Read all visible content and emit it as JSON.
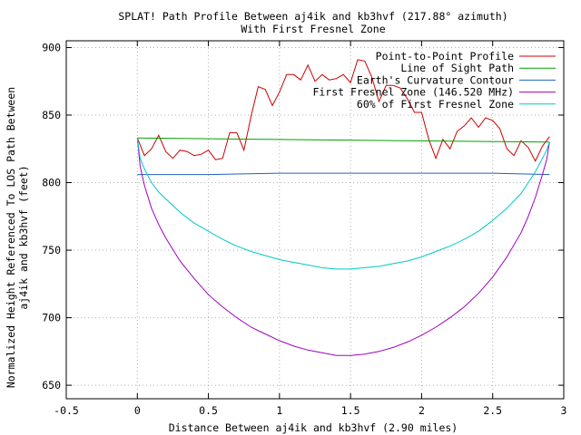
{
  "chart_data": {
    "type": "line",
    "title": "SPLAT! Path Profile Between aj4ik and kb3hvf (217.88° azimuth)",
    "subtitle": "With First Fresnel Zone",
    "xlabel": "Distance Between aj4ik and kb3hvf (2.90 miles)",
    "ylabel_line1": "Normalized Height Referenced To LOS Path Between",
    "ylabel_line2": "aj4ik and kb3hvf (feet)",
    "xlim": [
      -0.5,
      3
    ],
    "ylim": [
      640,
      905
    ],
    "xticks": [
      {
        "value": -0.5,
        "label": "-0.5"
      },
      {
        "value": 0,
        "label": "0"
      },
      {
        "value": 0.5,
        "label": "0.5"
      },
      {
        "value": 1,
        "label": "1"
      },
      {
        "value": 1.5,
        "label": "1.5"
      },
      {
        "value": 2,
        "label": "2"
      },
      {
        "value": 2.5,
        "label": "2.5"
      },
      {
        "value": 3,
        "label": "3"
      }
    ],
    "yticks": [
      {
        "value": 650,
        "label": "650"
      },
      {
        "value": 700,
        "label": "700"
      },
      {
        "value": 750,
        "label": "750"
      },
      {
        "value": 800,
        "label": "800"
      },
      {
        "value": 850,
        "label": "850"
      },
      {
        "value": 900,
        "label": "900"
      }
    ],
    "grid": true,
    "legend_position": "top-right",
    "series": [
      {
        "name": "Point-to-Point Profile",
        "color": "#cc0000",
        "x": [
          0,
          0.05,
          0.1,
          0.15,
          0.2,
          0.25,
          0.3,
          0.35,
          0.4,
          0.45,
          0.5,
          0.55,
          0.6,
          0.65,
          0.7,
          0.75,
          0.8,
          0.85,
          0.9,
          0.95,
          1.0,
          1.05,
          1.1,
          1.15,
          1.2,
          1.25,
          1.3,
          1.35,
          1.4,
          1.45,
          1.5,
          1.55,
          1.6,
          1.65,
          1.7,
          1.75,
          1.8,
          1.85,
          1.9,
          1.95,
          2.0,
          2.05,
          2.1,
          2.15,
          2.2,
          2.25,
          2.3,
          2.35,
          2.4,
          2.45,
          2.5,
          2.55,
          2.6,
          2.65,
          2.7,
          2.75,
          2.8,
          2.85,
          2.9
        ],
        "y": [
          833,
          820,
          825,
          835,
          823,
          818,
          824,
          823,
          820,
          821,
          824,
          817,
          818,
          837,
          837,
          824,
          849,
          871,
          869,
          857,
          867,
          880,
          880,
          876,
          887,
          875,
          880,
          876,
          877,
          880,
          874,
          891,
          890,
          878,
          860,
          872,
          872,
          870,
          862,
          852,
          852,
          832,
          818,
          832,
          825,
          838,
          842,
          848,
          841,
          848,
          846,
          840,
          825,
          820,
          831,
          826,
          816,
          827,
          834
        ]
      },
      {
        "name": "Line of Sight Path",
        "color": "#00a000",
        "x": [
          0,
          2.9
        ],
        "y": [
          833,
          830
        ]
      },
      {
        "name": "Earth's Curvature Contour",
        "color": "#2060c0",
        "x": [
          0,
          0.5,
          1.0,
          1.5,
          2.0,
          2.5,
          2.9
        ],
        "y": [
          806,
          806,
          807,
          807,
          807,
          807,
          806
        ]
      },
      {
        "name": "First Fresnel Zone (146.520 MHz)",
        "color": "#a000c0",
        "x": [
          0,
          0.02,
          0.05,
          0.1,
          0.15,
          0.2,
          0.3,
          0.4,
          0.5,
          0.6,
          0.7,
          0.8,
          0.9,
          1.0,
          1.1,
          1.2,
          1.3,
          1.4,
          1.45,
          1.5,
          1.6,
          1.7,
          1.8,
          1.9,
          2.0,
          2.1,
          2.2,
          2.3,
          2.4,
          2.5,
          2.6,
          2.7,
          2.75,
          2.8,
          2.85,
          2.88,
          2.9
        ],
        "y": [
          833,
          812,
          798,
          781,
          769,
          759,
          742,
          729,
          717,
          708,
          700,
          693,
          688,
          683,
          679,
          676,
          674,
          672,
          672,
          672,
          673,
          675,
          678,
          682,
          687,
          693,
          700,
          708,
          718,
          730,
          745,
          763,
          775,
          789,
          806,
          817,
          830
        ]
      },
      {
        "name": "60% of First Fresnel Zone",
        "color": "#00c8c8",
        "x": [
          0,
          0.02,
          0.05,
          0.1,
          0.15,
          0.2,
          0.3,
          0.4,
          0.5,
          0.6,
          0.7,
          0.8,
          0.9,
          1.0,
          1.1,
          1.2,
          1.3,
          1.4,
          1.45,
          1.5,
          1.6,
          1.7,
          1.8,
          1.9,
          2.0,
          2.1,
          2.2,
          2.3,
          2.4,
          2.5,
          2.6,
          2.7,
          2.75,
          2.8,
          2.85,
          2.88,
          2.9
        ],
        "y": [
          833,
          818,
          810,
          800,
          793,
          788,
          778,
          770,
          764,
          758,
          753,
          749,
          746,
          743,
          741,
          739,
          737,
          736,
          736,
          736,
          737,
          738,
          740,
          742,
          745,
          749,
          753,
          758,
          764,
          772,
          781,
          792,
          800,
          808,
          818,
          824,
          830
        ]
      }
    ]
  }
}
